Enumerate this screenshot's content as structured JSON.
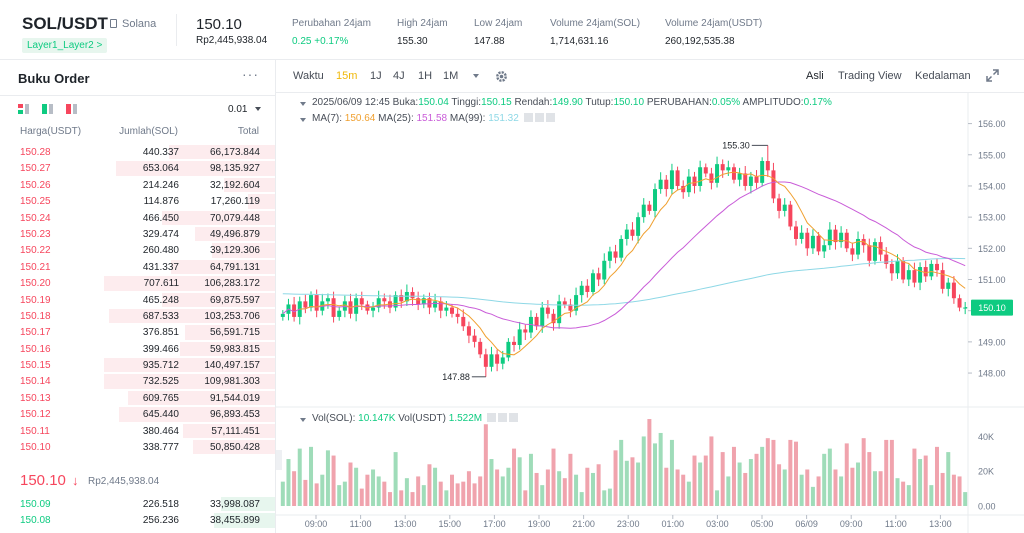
{
  "header": {
    "pair": "SOL/USDT",
    "coin_name": "Solana",
    "tag": "Layer1_Layer2 >",
    "price": "150.10",
    "price_idr": "Rp2,445,938.04",
    "stats": [
      {
        "label": "Perubahan 24jam",
        "value": "0.25 +0.17%",
        "color": "green"
      },
      {
        "label": "High 24jam",
        "value": "155.30",
        "color": "dark"
      },
      {
        "label": "Low 24jam",
        "value": "147.88",
        "color": "dark"
      },
      {
        "label": "Volume 24jam(SOL)",
        "value": "1,714,631.16",
        "color": "dark"
      },
      {
        "label": "Volume 24jam(USDT)",
        "value": "260,192,535.38",
        "color": "dark"
      }
    ]
  },
  "orderbook": {
    "title": "Buku Order",
    "more": "···",
    "precision": "0.01",
    "columns": [
      "Harga(USDT)",
      "Jumlah(SOL)",
      "Total"
    ],
    "asks": [
      {
        "price": "150.28",
        "qty": "440.337",
        "total": "66,173.844",
        "depth": 0.62
      },
      {
        "price": "150.27",
        "qty": "653.064",
        "total": "98,135.927",
        "depth": 0.93
      },
      {
        "price": "150.26",
        "qty": "214.246",
        "total": "32,192.604",
        "depth": 0.3
      },
      {
        "price": "150.25",
        "qty": "114.876",
        "total": "17,260.119",
        "depth": 0.16
      },
      {
        "price": "150.24",
        "qty": "466.450",
        "total": "70,079.448",
        "depth": 0.66
      },
      {
        "price": "150.23",
        "qty": "329.474",
        "total": "49,496.879",
        "depth": 0.47
      },
      {
        "price": "150.22",
        "qty": "260.480",
        "total": "39,129.306",
        "depth": 0.37
      },
      {
        "price": "150.21",
        "qty": "431.337",
        "total": "64,791.131",
        "depth": 0.61
      },
      {
        "price": "150.20",
        "qty": "707.611",
        "total": "106,283.172",
        "depth": 1.0
      },
      {
        "price": "150.19",
        "qty": "465.248",
        "total": "69,875.597",
        "depth": 0.66
      },
      {
        "price": "150.18",
        "qty": "687.533",
        "total": "103,253.706",
        "depth": 0.97
      },
      {
        "price": "150.17",
        "qty": "376.851",
        "total": "56,591.715",
        "depth": 0.53
      },
      {
        "price": "150.16",
        "qty": "399.466",
        "total": "59,983.815",
        "depth": 0.56
      },
      {
        "price": "150.15",
        "qty": "935.712",
        "total": "140,497.157",
        "depth": 1.0
      },
      {
        "price": "150.14",
        "qty": "732.525",
        "total": "109,981.303",
        "depth": 1.0
      },
      {
        "price": "150.13",
        "qty": "609.765",
        "total": "91,544.019",
        "depth": 0.86
      },
      {
        "price": "150.12",
        "qty": "645.440",
        "total": "96,893.453",
        "depth": 0.91
      },
      {
        "price": "150.11",
        "qty": "380.464",
        "total": "57,111.451",
        "depth": 0.54
      },
      {
        "price": "150.10",
        "qty": "338.777",
        "total": "50,850.428",
        "depth": 0.48
      }
    ],
    "mid_price": "150.10",
    "mid_arrow": "↓",
    "mid_price_idr": "Rp2,445,938.04",
    "bids": [
      {
        "price": "150.09",
        "qty": "226.518",
        "total": "33,998.087",
        "depth": 0.32
      },
      {
        "price": "150.08",
        "qty": "256.236",
        "total": "38,455.899",
        "depth": 0.36
      }
    ]
  },
  "toolbar": {
    "time_label": "Waktu",
    "intervals": [
      "15m",
      "1J",
      "4J",
      "1H",
      "1M"
    ],
    "active_interval": "15m",
    "views": [
      "Asli",
      "Trading View",
      "Kedalaman"
    ],
    "active_view": "Asli"
  },
  "legend": {
    "ohlc": {
      "date": "2025/06/09 12:45",
      "open_label": "Buka:",
      "open": "150.04",
      "high_label": "Tinggi:",
      "high": "150.15",
      "low_label": "Rendah:",
      "low": "149.90",
      "close_label": "Tutup:",
      "close": "150.10",
      "change_label": "PERUBAHAN:",
      "change": "0.05%",
      "amp_label": "AMPLITUDO:",
      "amp": "0.17%"
    },
    "ma": {
      "ma7_label": "MA(7):",
      "ma7": "150.64",
      "ma25_label": "MA(25):",
      "ma25": "151.58",
      "ma99_label": "MA(99):",
      "ma99": "151.32"
    },
    "vol": {
      "sol_label": "Vol(SOL):",
      "sol": "10.147K",
      "usdt_label": "Vol(USDT)",
      "usdt": "1.522M"
    }
  },
  "chart_data": {
    "type": "candlestick",
    "price_axis": {
      "min": 147.2,
      "max": 156.5,
      "ticks": [
        "156.00",
        "155.00",
        "154.00",
        "153.00",
        "152.00",
        "151.00",
        "150.00",
        "149.00",
        "148.00"
      ]
    },
    "volume_axis": {
      "max": 46000,
      "ticks": [
        "40K",
        "20K",
        "0.00"
      ]
    },
    "x_ticks": [
      "09:00",
      "11:00",
      "13:00",
      "15:00",
      "17:00",
      "19:00",
      "21:00",
      "23:00",
      "01:00",
      "03:00",
      "05:00",
      "06/09",
      "09:00",
      "11:00",
      "13:00"
    ],
    "current_price": "150.10",
    "high_marker": "155.30",
    "low_marker": "147.88",
    "colors": {
      "up": "#0ecb81",
      "down": "#f6465d",
      "up_vol": "#9fdcb9",
      "down_vol": "#f0a3ad",
      "ma7": "#f0a030",
      "ma25": "#c95cd8",
      "ma99": "#8ed8e6"
    },
    "closes": [
      149.9,
      150.2,
      149.8,
      150.3,
      150.1,
      150.5,
      150.0,
      150.3,
      150.4,
      149.8,
      150.0,
      150.3,
      149.9,
      150.4,
      150.2,
      150.0,
      150.1,
      150.4,
      150.3,
      150.1,
      150.5,
      150.3,
      150.6,
      150.4,
      150.2,
      150.4,
      150.1,
      150.3,
      150.0,
      150.1,
      149.9,
      149.8,
      149.5,
      149.2,
      149.0,
      148.6,
      148.2,
      148.6,
      148.3,
      148.5,
      149.0,
      148.9,
      149.4,
      149.3,
      149.8,
      149.5,
      150.1,
      149.9,
      149.6,
      150.3,
      150.2,
      150.0,
      150.5,
      150.8,
      150.6,
      151.2,
      151.0,
      151.6,
      151.9,
      151.7,
      152.3,
      152.6,
      152.4,
      153.0,
      153.4,
      153.2,
      153.9,
      154.2,
      153.9,
      154.5,
      154.0,
      153.8,
      154.3,
      154.0,
      154.6,
      154.4,
      154.1,
      154.7,
      154.5,
      154.6,
      154.2,
      154.4,
      154.0,
      154.3,
      154.1,
      154.8,
      154.5,
      153.6,
      153.2,
      153.4,
      152.7,
      152.3,
      152.5,
      152.0,
      152.4,
      151.9,
      152.1,
      152.6,
      152.2,
      152.5,
      152.0,
      151.8,
      152.3,
      152.1,
      151.6,
      152.2,
      151.8,
      151.5,
      151.2,
      151.6,
      151.0,
      151.3,
      150.9,
      151.4,
      151.1,
      151.5,
      151.3,
      150.7,
      150.9,
      150.4,
      150.1,
      150.1
    ],
    "volumes": [
      14,
      27,
      20,
      33,
      15,
      34,
      13,
      18,
      32,
      29,
      12,
      14,
      25,
      22,
      10,
      18,
      21,
      17,
      14,
      8,
      31,
      9,
      16,
      8,
      17,
      12,
      24,
      22,
      14,
      9,
      18,
      13,
      14,
      20,
      13,
      17,
      47,
      27,
      21,
      17,
      22,
      33,
      28,
      9,
      30,
      19,
      12,
      21,
      33,
      20,
      16,
      30,
      18,
      8,
      22,
      19,
      24,
      9,
      10,
      32,
      38,
      26,
      28,
      25,
      40,
      50,
      36,
      42,
      22,
      38,
      21,
      18,
      14,
      29,
      25,
      29,
      40,
      9,
      31,
      17,
      34,
      25,
      19,
      27,
      30,
      34,
      39,
      38,
      24,
      21,
      38,
      37,
      18,
      21,
      11,
      17,
      30,
      33,
      21,
      17,
      36,
      22,
      25,
      39,
      31,
      20,
      20,
      38,
      38,
      16,
      14,
      12,
      33,
      27,
      29,
      12,
      34,
      19,
      31,
      18,
      17,
      8
    ]
  }
}
